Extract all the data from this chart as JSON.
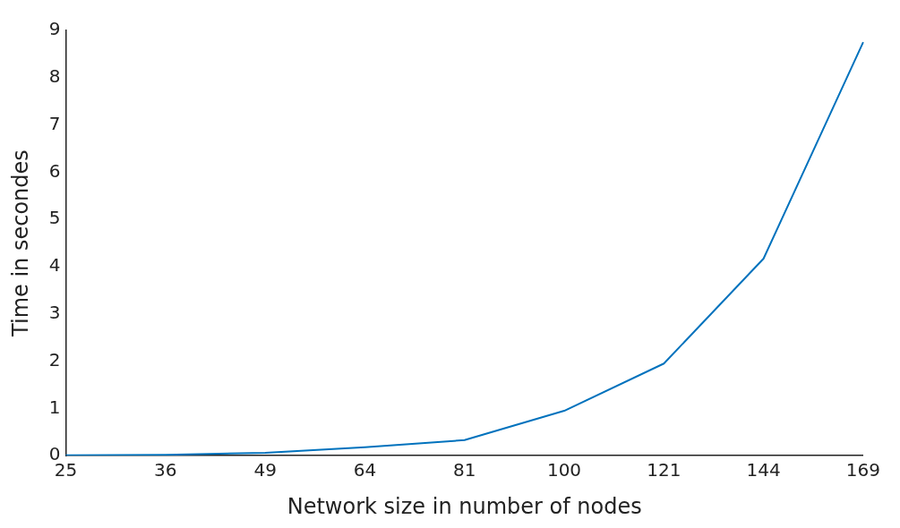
{
  "chart_data": {
    "type": "line",
    "xlabel": "Network size in number of nodes",
    "ylabel": "Time in secondes",
    "categories": [
      "25",
      "36",
      "49",
      "64",
      "81",
      "100",
      "121",
      "144",
      "169"
    ],
    "series": [
      {
        "color": "#0072bd",
        "values": [
          0.01,
          0.02,
          0.06,
          0.18,
          0.33,
          0.95,
          1.95,
          4.17,
          8.75
        ]
      }
    ],
    "ylim": [
      0,
      9
    ],
    "yticks": [
      0,
      1,
      2,
      3,
      4,
      5,
      6,
      7,
      8,
      9
    ],
    "grid": false,
    "legend": false,
    "marker": "none",
    "line_style": "solid"
  }
}
